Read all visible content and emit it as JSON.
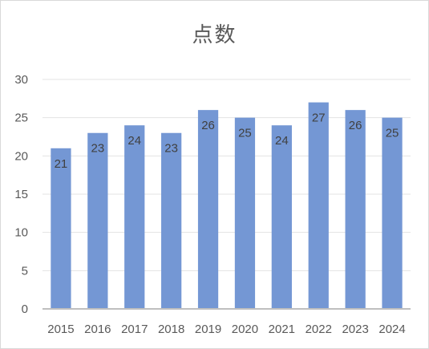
{
  "chart_data": {
    "type": "bar",
    "title": "点数",
    "xlabel": "",
    "ylabel": "",
    "categories": [
      "2015",
      "2016",
      "2017",
      "2018",
      "2019",
      "2020",
      "2021",
      "2022",
      "2023",
      "2024"
    ],
    "values": [
      21,
      23,
      24,
      23,
      26,
      25,
      24,
      27,
      26,
      25
    ],
    "data_labels": [
      "21",
      "23",
      "24",
      "23",
      "26",
      "25",
      "24",
      "27",
      "26",
      "25"
    ],
    "ylim": [
      0,
      30
    ],
    "y_ticks": [
      "0",
      "5",
      "10",
      "15",
      "20",
      "25",
      "30"
    ],
    "grid": true,
    "legend": "none",
    "bar_color": "#7497d4",
    "gridline_color": "#e3e3e3",
    "axis_color": "#bfbfbf"
  }
}
